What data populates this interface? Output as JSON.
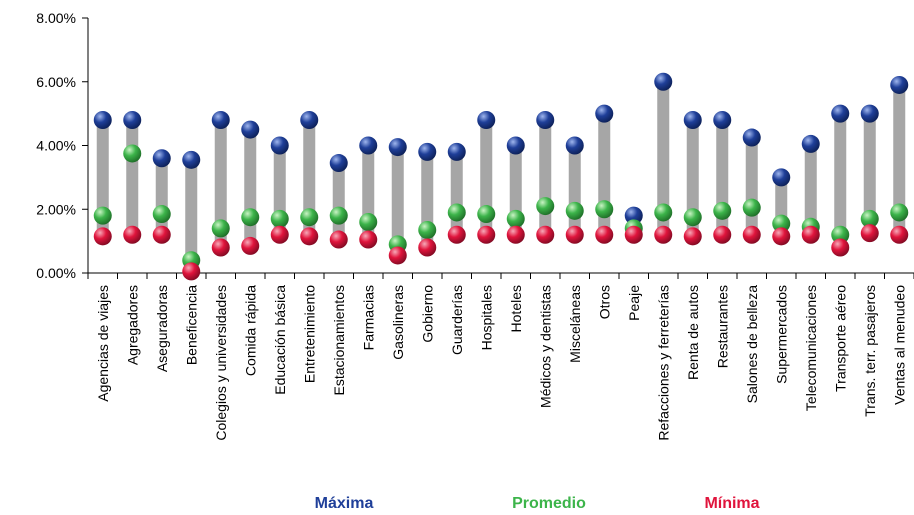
{
  "chart_data": {
    "type": "scatter",
    "categories": [
      "Agencias de viajes",
      "Agregadores",
      "Aseguradoras",
      "Beneficencia",
      "Colegios y universidades",
      "Comida rápida",
      "Educación básica",
      "Entretenimiento",
      "Estacionamientos",
      "Farmacias",
      "Gasolineras",
      "Gobierno",
      "Guarderías",
      "Hospitales",
      "Hoteles",
      "Médicos y dentistas",
      "Misceláneas",
      "Otros",
      "Peaje",
      "Refacciones y ferreterías",
      "Renta de autos",
      "Restaurantes",
      "Salones de belleza",
      "Supermercados",
      "Telecomunicaciones",
      "Transporte aéreo",
      "Trans. terr. pasajeros",
      "Ventas al menudeo"
    ],
    "series": [
      {
        "name": "Máxima",
        "color": "#1f3f99",
        "values": [
          4.8,
          4.8,
          3.6,
          3.55,
          4.8,
          4.5,
          4.0,
          4.8,
          3.45,
          4.0,
          3.95,
          3.8,
          3.8,
          4.8,
          4.0,
          4.8,
          4.0,
          5.0,
          1.8,
          6.0,
          4.8,
          4.8,
          4.25,
          3.0,
          4.05,
          5.0,
          5.0,
          5.9
        ]
      },
      {
        "name": "Promedio",
        "color": "#3cb44a",
        "values": [
          1.8,
          3.75,
          1.85,
          0.4,
          1.4,
          1.75,
          1.7,
          1.75,
          1.8,
          1.6,
          0.9,
          1.35,
          1.9,
          1.85,
          1.7,
          2.1,
          1.95,
          2.0,
          1.4,
          1.9,
          1.75,
          1.95,
          2.05,
          1.55,
          1.45,
          1.2,
          1.7,
          1.9
        ]
      },
      {
        "name": "Mínima",
        "color": "#e0143c",
        "values": [
          1.15,
          1.2,
          1.2,
          0.05,
          0.8,
          0.85,
          1.2,
          1.15,
          1.05,
          1.05,
          0.55,
          0.8,
          1.2,
          1.2,
          1.2,
          1.2,
          1.2,
          1.2,
          1.2,
          1.2,
          1.15,
          1.2,
          1.2,
          1.15,
          1.2,
          0.8,
          1.25,
          1.2
        ]
      }
    ],
    "yticks": [
      "0.00%",
      "2.00%",
      "4.00%",
      "6.00%",
      "8.00%"
    ],
    "ylim": [
      0,
      8
    ],
    "grid": false,
    "legend_position": "bottom",
    "range_bar_color": "#a6a6a6"
  }
}
